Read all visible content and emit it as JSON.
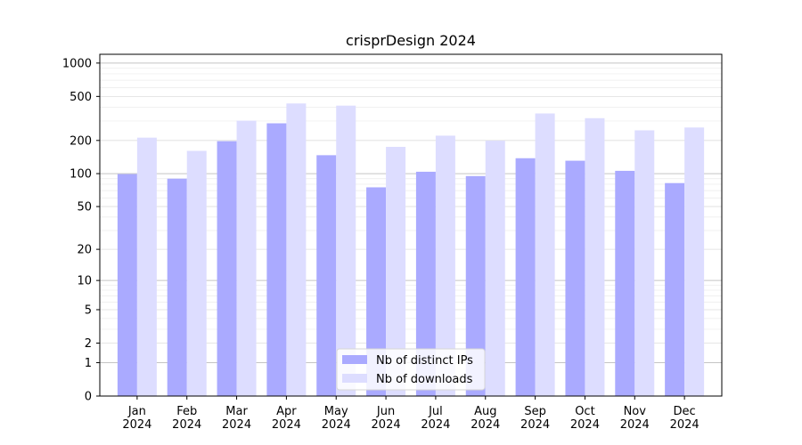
{
  "chart_data": {
    "type": "bar",
    "title": "crisprDesign 2024",
    "xlabel": "",
    "ylabel": "",
    "yscale": "log(1+y)",
    "ylim": [
      0,
      1200
    ],
    "yticks": [
      0,
      1,
      2,
      5,
      10,
      20,
      50,
      100,
      200,
      500,
      1000
    ],
    "categories": [
      "Jan\n2024",
      "Feb\n2024",
      "Mar\n2024",
      "Apr\n2024",
      "May\n2024",
      "Jun\n2024",
      "Jul\n2024",
      "Aug\n2024",
      "Sep\n2024",
      "Oct\n2024",
      "Nov\n2024",
      "Dec\n2024"
    ],
    "series": [
      {
        "name": "Nb of distinct IPs",
        "color": "#aaaaff",
        "values": [
          99,
          90,
          197,
          286,
          147,
          75,
          104,
          95,
          138,
          131,
          106,
          82
        ]
      },
      {
        "name": "Nb of downloads",
        "color": "#ddddff",
        "values": [
          212,
          161,
          302,
          432,
          413,
          175,
          221,
          199,
          351,
          318,
          247,
          262
        ]
      }
    ],
    "grid": true,
    "legend_position": "bottom-center"
  }
}
